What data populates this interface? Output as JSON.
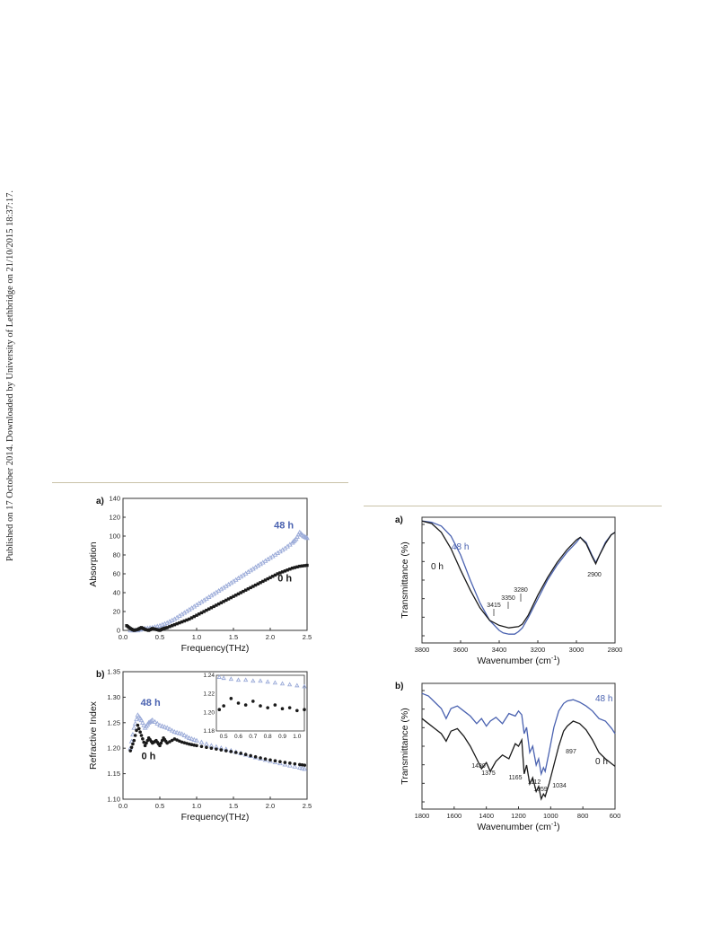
{
  "side_note": "Published on 17 October 2014. Downloaded by University of Lethbridge on 21/10/2015 18:37:17.",
  "colors": {
    "blue": "#4a62b0",
    "lightblue": "#9aaad8",
    "black": "#1a1a1a"
  },
  "chart_data": [
    {
      "panel": "a)",
      "type": "scatter",
      "xlabel": "Frequency(THz)",
      "ylabel": "Absorption",
      "xlim": [
        0.0,
        2.5
      ],
      "ylim": [
        0,
        140
      ],
      "xticks": [
        "0.0",
        "0.5",
        "1.0",
        "1.5",
        "2.0",
        "2.5"
      ],
      "yticks": [
        "0",
        "20",
        "40",
        "60",
        "80",
        "100",
        "120",
        "140"
      ],
      "series": [
        {
          "name": "48 h",
          "marker": "open-triangle",
          "color": "#9aaad8",
          "x": [
            0.1,
            0.2,
            0.3,
            0.4,
            0.5,
            0.6,
            0.7,
            0.8,
            0.9,
            1.0,
            1.1,
            1.2,
            1.3,
            1.4,
            1.5,
            1.6,
            1.7,
            1.8,
            1.9,
            2.0,
            2.1,
            2.2,
            2.3,
            2.35,
            2.4,
            2.45,
            2.5
          ],
          "y": [
            0,
            0,
            2,
            3,
            5,
            8,
            12,
            17,
            22,
            27,
            32,
            37,
            42,
            47,
            52,
            57,
            62,
            67,
            72,
            77,
            82,
            87,
            93,
            97,
            104,
            100,
            98
          ]
        },
        {
          "name": "0 h",
          "marker": "filled-square",
          "color": "#1a1a1a",
          "x": [
            0.05,
            0.1,
            0.15,
            0.2,
            0.25,
            0.3,
            0.35,
            0.4,
            0.45,
            0.5,
            0.55,
            0.6,
            0.7,
            0.8,
            0.9,
            1.0,
            1.1,
            1.2,
            1.3,
            1.4,
            1.5,
            1.6,
            1.7,
            1.8,
            1.9,
            2.0,
            2.1,
            2.2,
            2.3,
            2.4,
            2.5
          ],
          "y": [
            5,
            2,
            0,
            1,
            3,
            1,
            0,
            2,
            1,
            0,
            2,
            3,
            6,
            9,
            12,
            16,
            20,
            24,
            28,
            32,
            36,
            40,
            44,
            48,
            52,
            56,
            60,
            63,
            66,
            68,
            69
          ]
        }
      ]
    },
    {
      "panel": "b)",
      "type": "scatter",
      "xlabel": "Frequency(THz)",
      "ylabel": "Refractive Index",
      "xlim": [
        0.0,
        2.5
      ],
      "ylim": [
        1.1,
        1.35
      ],
      "xticks": [
        "0.0",
        "0.5",
        "1.0",
        "1.5",
        "2.0",
        "2.5"
      ],
      "yticks": [
        "1.10",
        "1.15",
        "1.20",
        "1.25",
        "1.30",
        "1.35"
      ],
      "series": [
        {
          "name": "48 h",
          "marker": "open-triangle",
          "color": "#9aaad8",
          "x": [
            0.1,
            0.15,
            0.2,
            0.25,
            0.3,
            0.35,
            0.4,
            0.5,
            0.6,
            0.7,
            0.8,
            0.9,
            1.0,
            1.2,
            1.4,
            1.6,
            1.8,
            2.0,
            2.2,
            2.4,
            2.5
          ],
          "y": [
            1.2,
            1.24,
            1.265,
            1.255,
            1.24,
            1.25,
            1.255,
            1.245,
            1.24,
            1.232,
            1.228,
            1.22,
            1.215,
            1.205,
            1.198,
            1.19,
            1.182,
            1.175,
            1.168,
            1.162,
            1.158
          ]
        },
        {
          "name": "0 h",
          "marker": "filled-circle",
          "color": "#1a1a1a",
          "x": [
            0.1,
            0.15,
            0.2,
            0.25,
            0.3,
            0.35,
            0.4,
            0.45,
            0.5,
            0.55,
            0.6,
            0.7,
            0.8,
            0.9,
            1.0,
            1.2,
            1.4,
            1.6,
            1.8,
            2.0,
            2.2,
            2.4,
            2.5
          ],
          "y": [
            1.195,
            1.215,
            1.245,
            1.225,
            1.205,
            1.22,
            1.21,
            1.215,
            1.205,
            1.22,
            1.21,
            1.218,
            1.212,
            1.208,
            1.205,
            1.2,
            1.195,
            1.19,
            1.183,
            1.177,
            1.172,
            1.168,
            1.166
          ]
        }
      ],
      "inset": {
        "xlim": [
          0.45,
          1.05
        ],
        "ylim": [
          1.18,
          1.24
        ],
        "xticks": [
          "0.5",
          "0.6",
          "0.7",
          "0.8",
          "0.9",
          "1.0"
        ],
        "yticks": [
          "1.18",
          "1.20",
          "1.22",
          "1.24"
        ],
        "series": [
          {
            "name": "48 h",
            "x": [
              0.47,
              0.5,
              0.55,
              0.6,
              0.65,
              0.7,
              0.75,
              0.8,
              0.85,
              0.9,
              0.95,
              1.0,
              1.05
            ],
            "y": [
              1.238,
              1.237,
              1.236,
              1.235,
              1.235,
              1.234,
              1.234,
              1.233,
              1.232,
              1.231,
              1.23,
              1.229,
              1.228
            ]
          },
          {
            "name": "0 h",
            "x": [
              0.47,
              0.5,
              0.55,
              0.6,
              0.65,
              0.7,
              0.75,
              0.8,
              0.85,
              0.9,
              0.95,
              1.0,
              1.05
            ],
            "y": [
              1.203,
              1.207,
              1.215,
              1.21,
              1.208,
              1.212,
              1.207,
              1.205,
              1.208,
              1.204,
              1.205,
              1.202,
              1.203
            ]
          }
        ]
      }
    },
    {
      "panel": "a)",
      "type": "line",
      "xlabel": "Wavenumber (cm",
      "xlabel_sup": "-1",
      "xlabel_end": ")",
      "ylabel": "Transmittance (%)",
      "xlim": [
        3800,
        2800
      ],
      "xticks": [
        "3800",
        "3600",
        "3400",
        "3200",
        "3000",
        "2800"
      ],
      "annotations": [
        "3415",
        "3350",
        "3280",
        "2900"
      ],
      "series": [
        {
          "name": "48 h",
          "color": "#4a62b0",
          "x": [
            3800,
            3750,
            3700,
            3650,
            3600,
            3550,
            3500,
            3450,
            3400,
            3380,
            3350,
            3320,
            3300,
            3280,
            3250,
            3200,
            3150,
            3100,
            3050,
            3000,
            2980,
            2950,
            2920,
            2900,
            2880,
            2850,
            2820,
            2800
          ],
          "y": [
            97,
            96,
            93,
            85,
            70,
            50,
            32,
            18,
            10,
            8,
            7,
            7,
            9,
            12,
            20,
            35,
            50,
            62,
            72,
            80,
            84,
            80,
            70,
            64,
            70,
            80,
            86,
            88
          ]
        },
        {
          "name": "0 h",
          "color": "#1a1a1a",
          "x": [
            3800,
            3750,
            3700,
            3650,
            3600,
            3550,
            3500,
            3450,
            3400,
            3350,
            3300,
            3280,
            3250,
            3200,
            3150,
            3100,
            3050,
            3000,
            2980,
            2950,
            2920,
            2900,
            2880,
            2850,
            2820,
            2800
          ],
          "y": [
            97,
            95,
            88,
            75,
            58,
            42,
            28,
            18,
            14,
            12,
            13,
            15,
            22,
            38,
            52,
            64,
            74,
            82,
            84,
            79,
            69,
            63,
            70,
            79,
            86,
            88
          ]
        }
      ]
    },
    {
      "panel": "b)",
      "type": "line",
      "xlabel": "Wavenumber (cm",
      "xlabel_sup": "-1",
      "xlabel_end": ")",
      "ylabel": "Transmittance (%)",
      "xlim": [
        1800,
        600
      ],
      "xticks": [
        "1800",
        "1600",
        "1400",
        "1200",
        "1000",
        "800",
        "600"
      ],
      "annotations": [
        "1430",
        "1375",
        "1165",
        "1112",
        "1059",
        "1034",
        "897"
      ],
      "series": [
        {
          "name": "48 h",
          "color": "#4a62b0",
          "x": [
            1800,
            1760,
            1720,
            1680,
            1650,
            1620,
            1580,
            1540,
            1500,
            1460,
            1430,
            1400,
            1375,
            1340,
            1300,
            1260,
            1220,
            1200,
            1180,
            1165,
            1150,
            1130,
            1112,
            1090,
            1075,
            1059,
            1045,
            1034,
            1010,
            980,
            950,
            920,
            897,
            860,
            820,
            780,
            740,
            700,
            660,
            620,
            600
          ],
          "y": [
            92,
            90,
            85,
            80,
            72,
            80,
            82,
            78,
            74,
            68,
            72,
            66,
            70,
            73,
            68,
            76,
            74,
            78,
            75,
            60,
            65,
            45,
            50,
            35,
            40,
            28,
            33,
            30,
            45,
            65,
            78,
            84,
            86,
            87,
            85,
            82,
            78,
            72,
            70,
            64,
            60
          ]
        },
        {
          "name": "0 h",
          "color": "#1a1a1a",
          "x": [
            1800,
            1760,
            1720,
            1680,
            1650,
            1620,
            1580,
            1540,
            1500,
            1460,
            1430,
            1400,
            1375,
            1340,
            1300,
            1260,
            1220,
            1200,
            1180,
            1165,
            1150,
            1130,
            1112,
            1090,
            1075,
            1059,
            1045,
            1034,
            1010,
            980,
            950,
            920,
            897,
            860,
            820,
            780,
            740,
            700,
            660,
            620,
            600
          ],
          "y": [
            72,
            68,
            64,
            60,
            54,
            62,
            64,
            58,
            50,
            40,
            32,
            37,
            30,
            38,
            43,
            40,
            52,
            50,
            55,
            28,
            35,
            20,
            25,
            14,
            18,
            8,
            12,
            10,
            20,
            35,
            50,
            62,
            66,
            70,
            68,
            63,
            55,
            45,
            40,
            36,
            34
          ]
        }
      ]
    }
  ]
}
